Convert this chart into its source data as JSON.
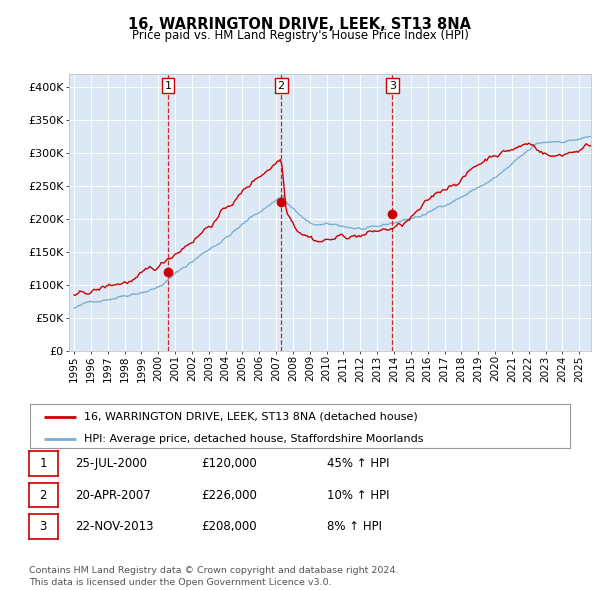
{
  "title": "16, WARRINGTON DRIVE, LEEK, ST13 8NA",
  "subtitle": "Price paid vs. HM Land Registry's House Price Index (HPI)",
  "ylim": [
    0,
    420000
  ],
  "yticks": [
    0,
    50000,
    100000,
    150000,
    200000,
    250000,
    300000,
    350000,
    400000
  ],
  "ytick_labels": [
    "£0",
    "£50K",
    "£100K",
    "£150K",
    "£200K",
    "£250K",
    "£300K",
    "£350K",
    "£400K"
  ],
  "bg_color": "#dce9f5",
  "hpi_color": "#7bafd4",
  "price_color": "#cc0000",
  "sale_dates": [
    2000.57,
    2007.3,
    2013.9
  ],
  "sale_prices": [
    120000,
    226000,
    208000
  ],
  "sale_labels": [
    "1",
    "2",
    "3"
  ],
  "vline_dates": [
    2000.57,
    2007.3,
    2013.9
  ],
  "legend_hpi_label": "HPI: Average price, detached house, Staffordshire Moorlands",
  "legend_price_label": "16, WARRINGTON DRIVE, LEEK, ST13 8NA (detached house)",
  "table_rows": [
    {
      "num": "1",
      "date": "25-JUL-2000",
      "price": "£120,000",
      "hpi": "45% ↑ HPI"
    },
    {
      "num": "2",
      "date": "20-APR-2007",
      "price": "£226,000",
      "hpi": "10% ↑ HPI"
    },
    {
      "num": "3",
      "date": "22-NOV-2013",
      "price": "£208,000",
      "hpi": "8% ↑ HPI"
    }
  ],
  "footer": "Contains HM Land Registry data © Crown copyright and database right 2024.\nThis data is licensed under the Open Government Licence v3.0.",
  "xstart": 1995.0,
  "xend": 2025.5
}
